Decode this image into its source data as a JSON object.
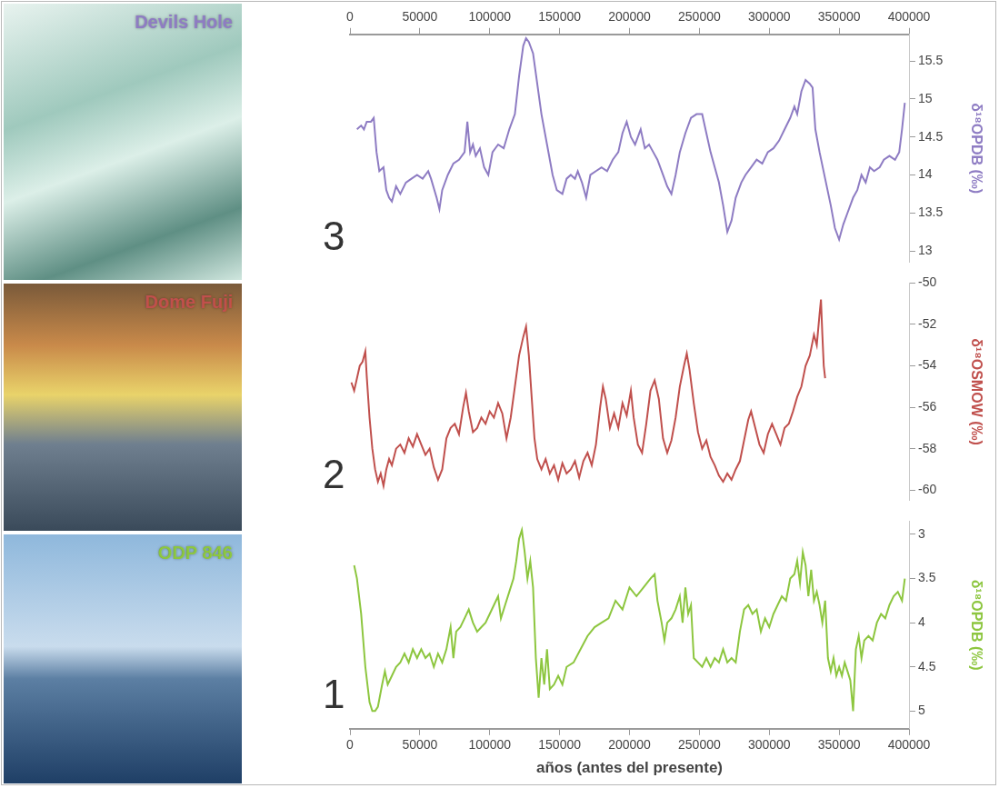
{
  "chart_data": [
    {
      "type": "line",
      "site": "Devils Hole",
      "panel": "3",
      "color": "#8e7cc3",
      "grid": false,
      "y_label": "δ¹⁸OPDB (‰)",
      "xlim": [
        0,
        400000
      ],
      "xticks": [
        0,
        50000,
        100000,
        150000,
        200000,
        250000,
        300000,
        350000,
        400000
      ],
      "ylim": [
        12.85,
        15.85
      ],
      "yticks": [
        13,
        13.5,
        14,
        14.5,
        15,
        15.5
      ],
      "x": [
        5000,
        8000,
        10000,
        12000,
        15000,
        17000,
        19000,
        21000,
        24000,
        26000,
        28000,
        30000,
        33000,
        36000,
        40000,
        44000,
        48000,
        52000,
        56000,
        58000,
        62000,
        64000,
        66000,
        70000,
        74000,
        78000,
        82000,
        84000,
        86000,
        88000,
        90000,
        93000,
        96000,
        99000,
        102000,
        106000,
        110000,
        114000,
        118000,
        121000,
        124000,
        126000,
        128000,
        131000,
        134000,
        137000,
        141000,
        145000,
        148000,
        152000,
        155000,
        158000,
        161000,
        163000,
        166000,
        169000,
        172000,
        176000,
        180000,
        184000,
        188000,
        192000,
        195000,
        198000,
        201000,
        204000,
        208000,
        211000,
        214000,
        217000,
        220000,
        224000,
        227000,
        230000,
        233000,
        236000,
        240000,
        244000,
        248000,
        252000,
        255000,
        258000,
        261000,
        264000,
        267000,
        270000,
        273000,
        276000,
        280000,
        283000,
        287000,
        291000,
        295000,
        299000,
        303000,
        307000,
        311000,
        315000,
        318000,
        320000,
        323000,
        326000,
        329000,
        331000,
        333000,
        336000,
        340000,
        344000,
        347000,
        350000,
        353000,
        356000,
        360000,
        363000,
        366000,
        369000,
        372000,
        375000,
        379000,
        382000,
        386000,
        390000,
        393000,
        395000,
        397000
      ],
      "values": [
        14.6,
        14.65,
        14.6,
        14.7,
        14.7,
        14.75,
        14.3,
        14.05,
        14.1,
        13.8,
        13.7,
        13.65,
        13.85,
        13.75,
        13.9,
        13.95,
        14.0,
        13.95,
        14.05,
        13.95,
        13.7,
        13.55,
        13.8,
        14.0,
        14.15,
        14.2,
        14.3,
        14.7,
        14.3,
        14.4,
        14.25,
        14.35,
        14.1,
        14.0,
        14.3,
        14.4,
        14.35,
        14.6,
        14.8,
        15.3,
        15.7,
        15.8,
        15.75,
        15.6,
        15.2,
        14.8,
        14.4,
        14.0,
        13.8,
        13.75,
        13.95,
        14.0,
        13.95,
        14.05,
        13.9,
        13.7,
        14.0,
        14.05,
        14.1,
        14.05,
        14.2,
        14.3,
        14.55,
        14.7,
        14.5,
        14.4,
        14.6,
        14.35,
        14.4,
        14.3,
        14.2,
        14.0,
        13.85,
        13.75,
        14.0,
        14.3,
        14.55,
        14.75,
        14.8,
        14.8,
        14.55,
        14.3,
        14.1,
        13.9,
        13.6,
        13.25,
        13.4,
        13.7,
        13.9,
        14.0,
        14.1,
        14.2,
        14.15,
        14.3,
        14.35,
        14.45,
        14.6,
        14.75,
        14.9,
        14.8,
        15.1,
        15.25,
        15.2,
        15.15,
        14.6,
        14.3,
        13.95,
        13.6,
        13.3,
        13.15,
        13.35,
        13.5,
        13.7,
        13.8,
        14.0,
        13.9,
        14.1,
        14.05,
        14.1,
        14.2,
        14.25,
        14.2,
        14.3,
        14.6,
        14.95
      ]
    },
    {
      "type": "line",
      "site": "Dome Fuji",
      "panel": "2",
      "color": "#c0504d",
      "grid": false,
      "tick_labels": "y",
      "y_label": "δ¹⁸OSMOW (‰)",
      "xlim": [
        0,
        400000
      ],
      "xticks": [
        0,
        50000,
        100000,
        150000,
        200000,
        250000,
        300000,
        350000,
        400000
      ],
      "ylim": [
        -60.5,
        -50
      ],
      "yticks": [
        -60,
        -58,
        -56,
        -54,
        -52,
        -50
      ],
      "x": [
        1000,
        3000,
        5000,
        7000,
        9000,
        11000,
        12000,
        14000,
        16000,
        18000,
        20000,
        22000,
        24000,
        26000,
        28000,
        30000,
        33000,
        36000,
        39000,
        42000,
        45000,
        48000,
        51000,
        54000,
        57000,
        60000,
        63000,
        66000,
        69000,
        72000,
        75000,
        78000,
        81000,
        83000,
        85000,
        88000,
        91000,
        94000,
        97000,
        100000,
        103000,
        106000,
        109000,
        112000,
        115000,
        118000,
        121000,
        124000,
        126000,
        128000,
        130000,
        132000,
        134000,
        137000,
        140000,
        143000,
        146000,
        149000,
        152000,
        155000,
        158000,
        161000,
        164000,
        167000,
        170000,
        173000,
        176000,
        179000,
        181000,
        183000,
        186000,
        189000,
        192000,
        195000,
        198000,
        201000,
        203000,
        206000,
        209000,
        212000,
        215000,
        218000,
        221000,
        224000,
        227000,
        230000,
        233000,
        236000,
        239000,
        241000,
        243000,
        246000,
        249000,
        252000,
        255000,
        258000,
        261000,
        264000,
        267000,
        270000,
        273000,
        276000,
        279000,
        282000,
        285000,
        287000,
        290000,
        293000,
        296000,
        299000,
        302000,
        305000,
        308000,
        311000,
        314000,
        317000,
        320000,
        323000,
        326000,
        329000,
        332000,
        334000,
        336000,
        337000,
        338000,
        339000,
        340000
      ],
      "values": [
        -54.8,
        -55.2,
        -54.6,
        -54.0,
        -53.8,
        -53.3,
        -54.5,
        -56.5,
        -58.0,
        -59.0,
        -59.6,
        -59.2,
        -59.8,
        -59.0,
        -58.5,
        -58.8,
        -58.0,
        -57.8,
        -58.2,
        -57.5,
        -57.9,
        -57.3,
        -57.8,
        -58.3,
        -58.0,
        -58.9,
        -59.5,
        -59.0,
        -57.5,
        -57.0,
        -56.8,
        -57.3,
        -56.0,
        -55.3,
        -56.2,
        -57.2,
        -57.0,
        -56.5,
        -56.8,
        -56.2,
        -56.5,
        -55.8,
        -56.3,
        -57.5,
        -56.5,
        -55.0,
        -53.5,
        -52.6,
        -52.1,
        -53.5,
        -55.5,
        -57.5,
        -58.5,
        -59.0,
        -58.5,
        -59.2,
        -58.8,
        -59.5,
        -58.7,
        -59.2,
        -59.0,
        -58.6,
        -59.4,
        -58.6,
        -58.2,
        -58.8,
        -57.8,
        -56.0,
        -55.0,
        -55.6,
        -57.0,
        -56.3,
        -57.0,
        -55.8,
        -56.4,
        -55.2,
        -56.5,
        -57.8,
        -58.2,
        -56.8,
        -55.2,
        -54.7,
        -55.6,
        -57.5,
        -58.2,
        -57.6,
        -56.5,
        -55.0,
        -54.0,
        -53.4,
        -54.2,
        -55.8,
        -57.2,
        -58.0,
        -57.6,
        -58.4,
        -58.8,
        -59.3,
        -59.6,
        -59.2,
        -59.5,
        -59.0,
        -58.6,
        -57.6,
        -56.6,
        -56.2,
        -57.0,
        -57.8,
        -58.2,
        -57.3,
        -56.8,
        -57.3,
        -57.8,
        -57.0,
        -56.8,
        -56.2,
        -55.5,
        -55.0,
        -54.0,
        -53.5,
        -52.5,
        -53.0,
        -51.5,
        -50.8,
        -52.5,
        -54.0,
        -54.6
      ]
    },
    {
      "type": "line",
      "site": "ODP 846",
      "panel": "1",
      "color": "#8dc63f",
      "grid": false,
      "y_label": "δ¹⁸OPDB (‰)",
      "x_label": "años (antes del presente)",
      "xlim": [
        0,
        400000
      ],
      "xticks": [
        0,
        50000,
        100000,
        150000,
        200000,
        250000,
        300000,
        350000,
        400000
      ],
      "ylim": [
        5.2,
        2.85
      ],
      "yticks": [
        3,
        3.5,
        4,
        4.5,
        5
      ],
      "x": [
        3000,
        5000,
        8000,
        11000,
        14000,
        16000,
        18000,
        20000,
        23000,
        25000,
        27000,
        30000,
        33000,
        36000,
        39000,
        42000,
        45000,
        48000,
        51000,
        54000,
        57000,
        60000,
        63000,
        66000,
        69000,
        72000,
        74000,
        76000,
        79000,
        82000,
        85000,
        88000,
        91000,
        94000,
        97000,
        100000,
        103000,
        106000,
        108000,
        111000,
        114000,
        117000,
        119000,
        121000,
        123000,
        125000,
        127000,
        129000,
        131000,
        133000,
        135000,
        137000,
        139000,
        141000,
        143000,
        146000,
        149000,
        152000,
        155000,
        160000,
        165000,
        170000,
        175000,
        180000,
        185000,
        190000,
        195000,
        200000,
        205000,
        210000,
        215000,
        218000,
        220000,
        223000,
        225000,
        227000,
        230000,
        233000,
        236000,
        238000,
        240000,
        242000,
        244000,
        246000,
        249000,
        252000,
        255000,
        258000,
        261000,
        264000,
        267000,
        270000,
        273000,
        276000,
        279000,
        282000,
        285000,
        288000,
        291000,
        294000,
        297000,
        300000,
        303000,
        306000,
        309000,
        312000,
        315000,
        318000,
        320000,
        322000,
        324000,
        326000,
        328000,
        330000,
        332000,
        334000,
        336000,
        338000,
        340000,
        342000,
        344000,
        346000,
        348000,
        350000,
        352000,
        354000,
        356000,
        358000,
        360000,
        362000,
        364000,
        366000,
        368000,
        371000,
        374000,
        377000,
        380000,
        383000,
        386000,
        389000,
        392000,
        395000,
        397000
      ],
      "values": [
        3.35,
        3.5,
        3.9,
        4.5,
        4.9,
        5.0,
        5.0,
        4.95,
        4.7,
        4.55,
        4.7,
        4.6,
        4.5,
        4.45,
        4.35,
        4.45,
        4.3,
        4.4,
        4.3,
        4.4,
        4.35,
        4.5,
        4.35,
        4.45,
        4.3,
        4.05,
        4.4,
        4.1,
        4.05,
        3.95,
        3.85,
        4.0,
        4.1,
        4.05,
        4.0,
        3.9,
        3.8,
        3.7,
        3.95,
        3.8,
        3.65,
        3.5,
        3.3,
        3.05,
        2.95,
        3.2,
        3.5,
        3.3,
        3.6,
        4.4,
        4.85,
        4.4,
        4.7,
        4.3,
        4.75,
        4.7,
        4.6,
        4.7,
        4.5,
        4.45,
        4.3,
        4.15,
        4.05,
        4.0,
        3.95,
        3.75,
        3.85,
        3.6,
        3.7,
        3.6,
        3.5,
        3.45,
        3.75,
        4.0,
        4.2,
        4.0,
        3.95,
        3.85,
        3.7,
        4.0,
        3.6,
        3.9,
        3.8,
        4.4,
        4.45,
        4.5,
        4.4,
        4.5,
        4.4,
        4.45,
        4.3,
        4.45,
        4.4,
        4.45,
        4.1,
        3.85,
        3.8,
        3.9,
        3.85,
        4.1,
        3.95,
        4.05,
        3.9,
        3.8,
        3.7,
        3.75,
        3.5,
        3.45,
        3.3,
        3.55,
        3.2,
        3.35,
        3.7,
        3.4,
        3.75,
        3.65,
        3.8,
        4.0,
        3.75,
        4.4,
        4.55,
        4.4,
        4.6,
        4.5,
        4.6,
        4.45,
        4.55,
        4.65,
        5.0,
        4.3,
        4.15,
        4.4,
        4.2,
        4.15,
        4.2,
        4.0,
        3.9,
        3.95,
        3.8,
        3.7,
        3.65,
        3.75,
        3.5
      ]
    }
  ]
}
